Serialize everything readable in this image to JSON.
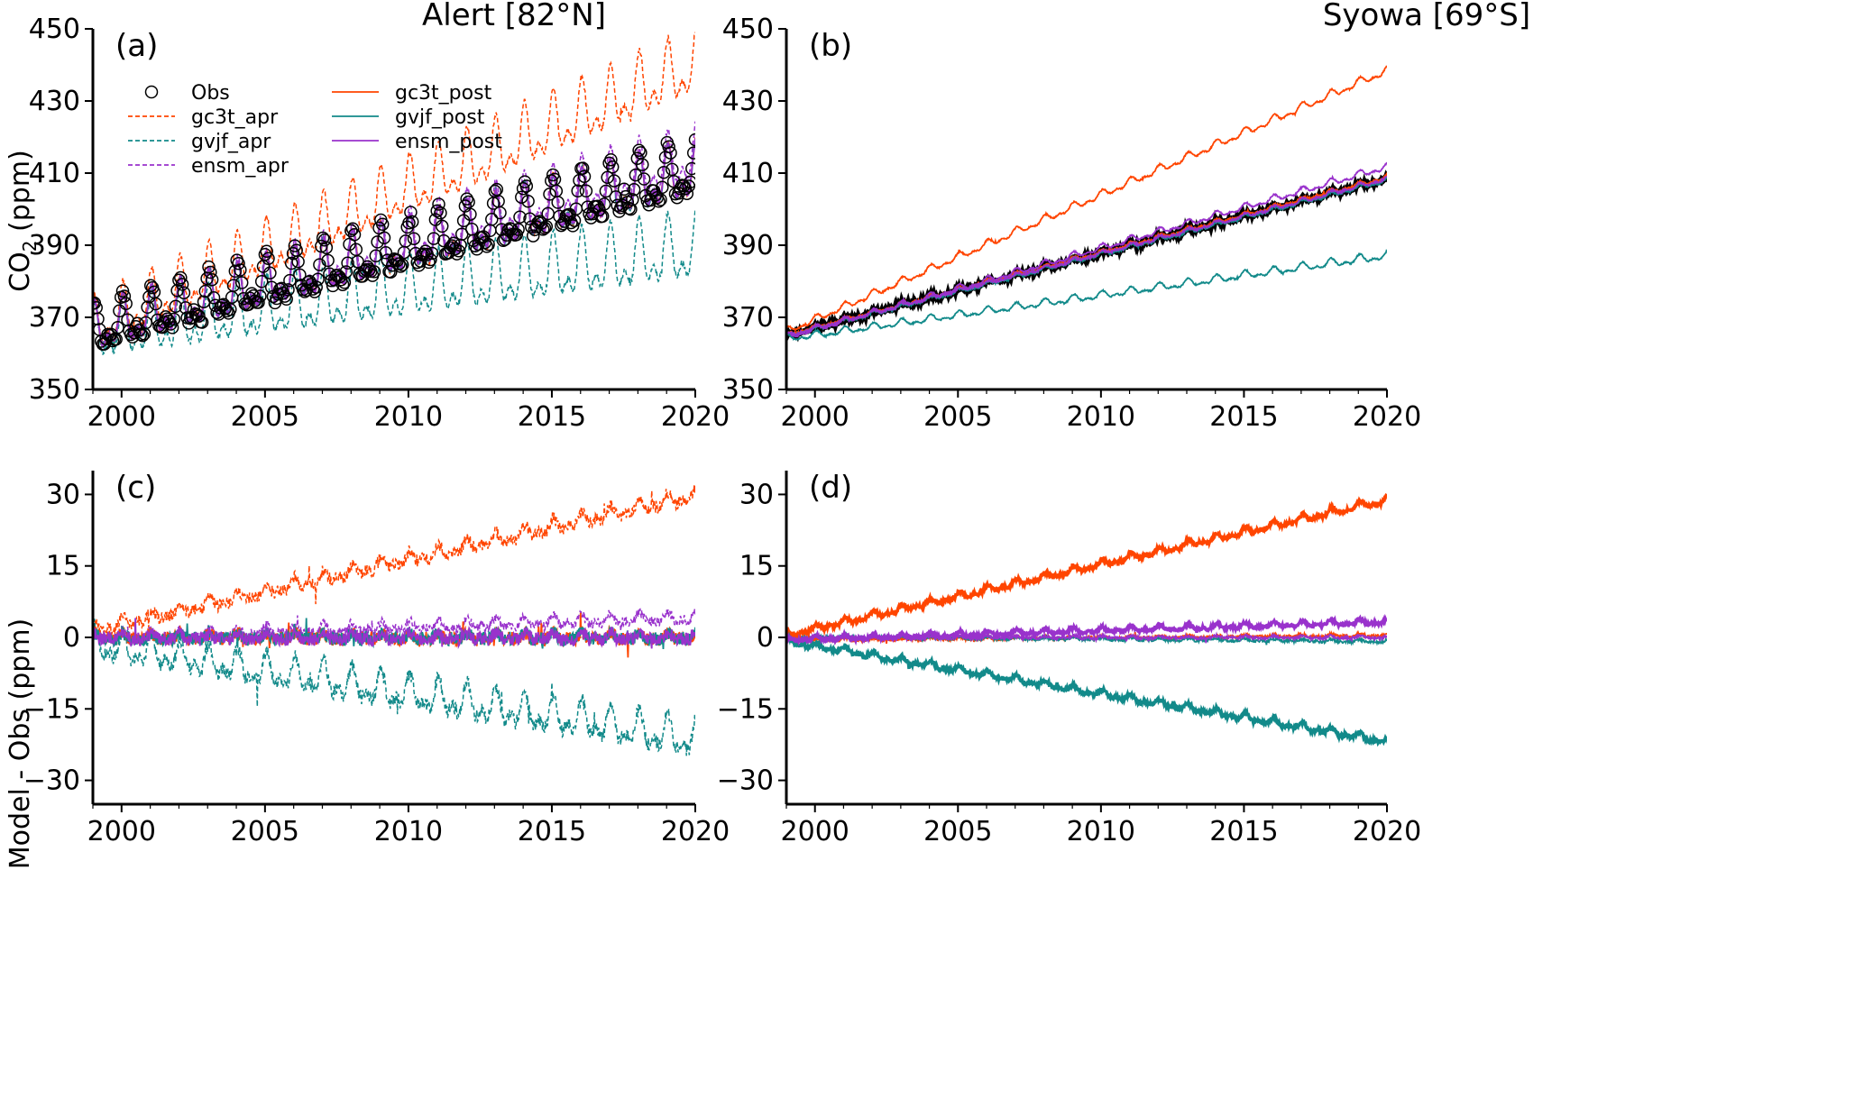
{
  "colors": {
    "obs": "#000000",
    "gc3t": "#ff4500",
    "gvjf": "#128a8a",
    "ensm": "#9932cc"
  },
  "chart_data": [
    {
      "type": "line",
      "panel_label": "(a)",
      "title": "Alert [82°N]",
      "ylabel_main": "CO",
      "ylabel_sub": "2",
      "ylabel_unit": " (ppm)",
      "xlim": [
        1999,
        2020
      ],
      "ylim": [
        350,
        450
      ],
      "xticks": [
        2000,
        2005,
        2010,
        2015,
        2020
      ],
      "yticks": [
        350,
        370,
        390,
        410,
        430,
        450
      ],
      "legend": {
        "placement": "top-left",
        "entries": [
          {
            "label": "Obs",
            "style": "circle",
            "color": "obs"
          },
          {
            "label": "gc3t_apr",
            "style": "dashed",
            "color": "gc3t"
          },
          {
            "label": "gvjf_apr",
            "style": "dashed",
            "color": "gvjf"
          },
          {
            "label": "ensm_apr",
            "style": "dashed",
            "color": "ensm"
          },
          {
            "label": "gc3t_post",
            "style": "solid",
            "color": "gc3t"
          },
          {
            "label": "gvjf_post",
            "style": "solid",
            "color": "gvjf"
          },
          {
            "label": "ensm_post",
            "style": "solid",
            "color": "ensm"
          }
        ]
      },
      "series": [
        {
          "key": "obs",
          "name": "Obs",
          "style": "circle",
          "color": "obs",
          "trend": {
            "start": 366,
            "rate": 2.1
          },
          "seasonal_amp": 8.5,
          "noise": 0.8
        },
        {
          "key": "gc3t_post",
          "name": "gc3t_post",
          "style": "solid",
          "color": "gc3t",
          "trend": {
            "start": 366,
            "rate": 2.1
          },
          "seasonal_amp": 8.5,
          "noise": 0.6
        },
        {
          "key": "gvjf_post",
          "name": "gvjf_post",
          "style": "solid",
          "color": "gvjf",
          "trend": {
            "start": 366,
            "rate": 2.1
          },
          "seasonal_amp": 8.5,
          "noise": 0.6
        },
        {
          "key": "ensm_post",
          "name": "ensm_post",
          "style": "solid",
          "color": "ensm",
          "trend": {
            "start": 366,
            "rate": 2.1
          },
          "seasonal_amp": 8.5,
          "noise": 0.6
        },
        {
          "key": "gc3t_apr",
          "name": "gc3t_apr",
          "style": "dashed",
          "color": "gc3t",
          "trend": {
            "start": 367,
            "rate": 3.45
          },
          "seasonal_amp": 9.5,
          "noise": 0.8
        },
        {
          "key": "gvjf_apr",
          "name": "gvjf_apr",
          "style": "dashed",
          "color": "gvjf",
          "trend": {
            "start": 365,
            "rate": 1.1
          },
          "seasonal_amp": 10,
          "noise": 0.8
        },
        {
          "key": "ensm_apr",
          "name": "ensm_apr",
          "style": "dashed",
          "color": "ensm",
          "trend": {
            "start": 366,
            "rate": 2.3
          },
          "seasonal_amp": 8.5,
          "noise": 0.8
        }
      ]
    },
    {
      "type": "line",
      "panel_label": "(b)",
      "title": "Syowa [69°S]",
      "xlim": [
        1999,
        2020
      ],
      "ylim": [
        350,
        450
      ],
      "xticks": [
        2000,
        2005,
        2010,
        2015,
        2020
      ],
      "yticks": [
        350,
        370,
        390,
        410,
        430,
        450
      ],
      "series": [
        {
          "key": "obs",
          "name": "Obs",
          "style": "thick",
          "color": "obs",
          "trend": {
            "start": 365,
            "rate": 2.07
          },
          "seasonal_amp": 0.6,
          "noise": 0.4
        },
        {
          "key": "gc3t_post",
          "name": "gc3t_post",
          "style": "solid",
          "color": "gc3t",
          "trend": {
            "start": 365.2,
            "rate": 2.08
          },
          "seasonal_amp": 0.6,
          "noise": 0.3
        },
        {
          "key": "gvjf_post",
          "name": "gvjf_post",
          "style": "solid",
          "color": "gvjf",
          "trend": {
            "start": 364.8,
            "rate": 2.06
          },
          "seasonal_amp": 0.6,
          "noise": 0.3
        },
        {
          "key": "ensm_post",
          "name": "ensm_post",
          "style": "solid",
          "color": "ensm",
          "trend": {
            "start": 365,
            "rate": 2.07
          },
          "seasonal_amp": 0.6,
          "noise": 0.3
        },
        {
          "key": "gc3t_apr",
          "name": "gc3t_apr",
          "style": "solid",
          "color": "gc3t",
          "trend": {
            "start": 366,
            "rate": 3.45
          },
          "seasonal_amp": 1.2,
          "noise": 0.2
        },
        {
          "key": "gvjf_apr",
          "name": "gvjf_apr",
          "style": "solid",
          "color": "gvjf",
          "trend": {
            "start": 364,
            "rate": 1.1
          },
          "seasonal_amp": 1.2,
          "noise": 0.2
        },
        {
          "key": "ensm_apr",
          "name": "ensm_apr",
          "style": "solid",
          "color": "ensm",
          "trend": {
            "start": 364.5,
            "rate": 2.25
          },
          "seasonal_amp": 1.0,
          "noise": 0.2
        }
      ]
    },
    {
      "type": "line",
      "panel_label": "(c)",
      "ylabel": "Model - Obs (ppm)",
      "xlim": [
        1999,
        2020
      ],
      "ylim": [
        -35,
        35
      ],
      "xticks": [
        2000,
        2005,
        2010,
        2015,
        2020
      ],
      "yticks": [
        -30,
        -15,
        0,
        15,
        30
      ],
      "series": [
        {
          "key": "gc3t_post",
          "name": "gc3t_post",
          "style": "solid",
          "color": "gc3t",
          "trend": {
            "start": 0,
            "rate": 0
          },
          "seasonal_amp": 0.8,
          "noise": 1.4
        },
        {
          "key": "gvjf_post",
          "name": "gvjf_post",
          "style": "solid",
          "color": "gvjf",
          "trend": {
            "start": 0,
            "rate": 0
          },
          "seasonal_amp": 0.8,
          "noise": 1.4
        },
        {
          "key": "ensm_post",
          "name": "ensm_post",
          "style": "solid",
          "color": "ensm",
          "trend": {
            "start": 0,
            "rate": 0
          },
          "seasonal_amp": 0.8,
          "noise": 1.4
        },
        {
          "key": "gc3t_apr",
          "name": "gc3t_apr",
          "style": "dashed",
          "color": "gc3t",
          "trend": {
            "start": 1.5,
            "rate": 1.35
          },
          "seasonal_amp": 1.5,
          "noise": 1.3
        },
        {
          "key": "gvjf_apr",
          "name": "gvjf_apr",
          "style": "dashed",
          "color": "gvjf",
          "trend": {
            "start": -1.5,
            "rate": -0.95
          },
          "seasonal_amp": 4.0,
          "noise": 1.5
        },
        {
          "key": "ensm_apr",
          "name": "ensm_apr",
          "style": "dashed",
          "color": "ensm",
          "trend": {
            "start": 0,
            "rate": 0.2
          },
          "seasonal_amp": 1.2,
          "noise": 1.0
        }
      ]
    },
    {
      "type": "line",
      "panel_label": "(d)",
      "xlim": [
        1999,
        2020
      ],
      "ylim": [
        -35,
        35
      ],
      "xticks": [
        2000,
        2005,
        2010,
        2015,
        2020
      ],
      "yticks": [
        -30,
        -15,
        0,
        15,
        30
      ],
      "series": [
        {
          "key": "gc3t_post",
          "name": "gc3t_post",
          "style": "solid",
          "color": "gc3t",
          "trend": {
            "start": -0.6,
            "rate": 0.05
          },
          "seasonal_amp": 0.3,
          "noise": 0.3
        },
        {
          "key": "gvjf_post",
          "name": "gvjf_post",
          "style": "solid",
          "color": "gvjf",
          "trend": {
            "start": 0.2,
            "rate": -0.05
          },
          "seasonal_amp": 0.3,
          "noise": 0.3
        },
        {
          "key": "ensm_post",
          "name": "ensm_post",
          "style": "solid",
          "color": "ensm",
          "trend": {
            "start": 0,
            "rate": 0
          },
          "seasonal_amp": 0.3,
          "noise": 0.3
        },
        {
          "key": "gc3t_apr",
          "name": "gc3t_apr",
          "style": "thick",
          "color": "gc3t",
          "trend": {
            "start": 0.5,
            "rate": 1.35
          },
          "seasonal_amp": 0.8,
          "noise": 0.4
        },
        {
          "key": "gvjf_apr",
          "name": "gvjf_apr",
          "style": "thick",
          "color": "gvjf",
          "trend": {
            "start": -0.8,
            "rate": -1.0
          },
          "seasonal_amp": 0.8,
          "noise": 0.4
        },
        {
          "key": "ensm_apr",
          "name": "ensm_apr",
          "style": "thick",
          "color": "ensm",
          "trend": {
            "start": -0.5,
            "rate": 0.18
          },
          "seasonal_amp": 0.6,
          "noise": 0.3
        }
      ]
    }
  ]
}
